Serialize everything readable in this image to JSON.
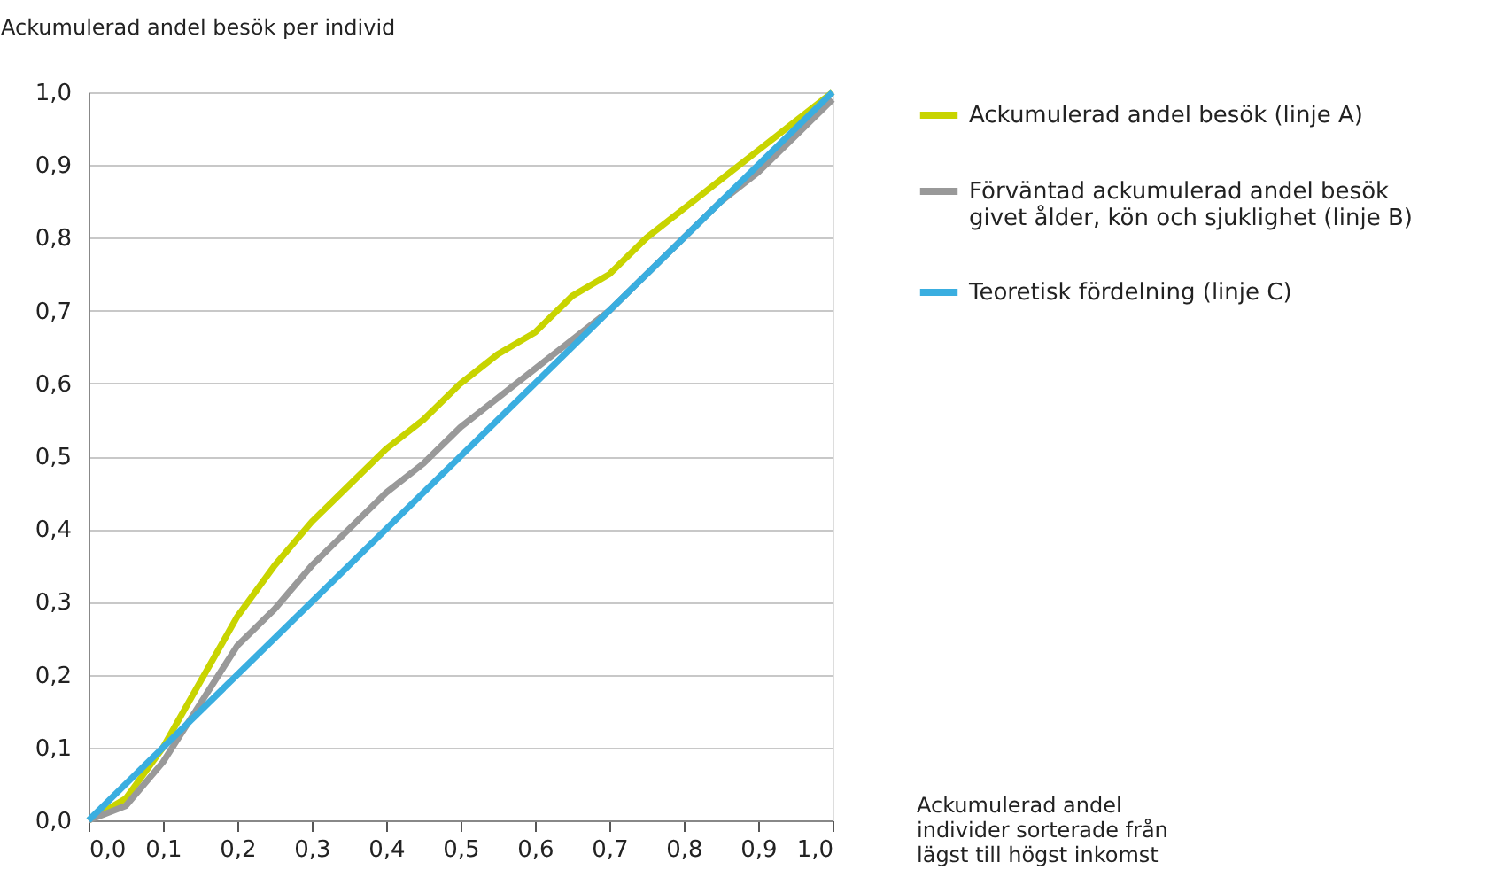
{
  "chart_data": {
    "type": "line",
    "ylabel": "Ackumulerad andel besök per individ",
    "xlabel": "Ackumulerad andel\nindivider sorterade från\nlägst till högst inkomst",
    "xlim": [
      0,
      1
    ],
    "ylim": [
      0,
      1
    ],
    "xticks": [
      {
        "value": 0,
        "label": "0,0"
      },
      {
        "value": 0.1,
        "label": "0,1"
      },
      {
        "value": 0.2,
        "label": "0,2"
      },
      {
        "value": 0.3,
        "label": "0,3"
      },
      {
        "value": 0.4,
        "label": "0,4"
      },
      {
        "value": 0.5,
        "label": "0,5"
      },
      {
        "value": 0.6,
        "label": "0,6"
      },
      {
        "value": 0.7,
        "label": "0,7"
      },
      {
        "value": 0.8,
        "label": "0,8"
      },
      {
        "value": 0.9,
        "label": "0,9"
      },
      {
        "value": 1,
        "label": "1,0"
      }
    ],
    "yticks": [
      {
        "value": 0,
        "label": "0,0"
      },
      {
        "value": 0.1,
        "label": "0,1"
      },
      {
        "value": 0.2,
        "label": "0,2"
      },
      {
        "value": 0.3,
        "label": "0,3"
      },
      {
        "value": 0.4,
        "label": "0,4"
      },
      {
        "value": 0.5,
        "label": "0,5"
      },
      {
        "value": 0.6,
        "label": "0,6"
      },
      {
        "value": 0.7,
        "label": "0,7"
      },
      {
        "value": 0.8,
        "label": "0,8"
      },
      {
        "value": 0.9,
        "label": "0,9"
      },
      {
        "value": 1,
        "label": "1,0"
      }
    ],
    "grid": "y",
    "legend": "right",
    "marker": "none",
    "line_style": "solid",
    "series": [
      {
        "name": "Ackumulerad andel besök (linje A)",
        "color": "#c8d400",
        "x": [
          0,
          0.05,
          0.1,
          0.15,
          0.2,
          0.25,
          0.3,
          0.35,
          0.4,
          0.45,
          0.5,
          0.55,
          0.6,
          0.65,
          0.7,
          0.75,
          0.8,
          0.85,
          0.9,
          0.95,
          1
        ],
        "values": [
          0,
          0.03,
          0.1,
          0.19,
          0.28,
          0.35,
          0.41,
          0.46,
          0.51,
          0.55,
          0.6,
          0.64,
          0.67,
          0.72,
          0.75,
          0.8,
          0.84,
          0.88,
          0.92,
          0.96,
          1
        ]
      },
      {
        "name": "Förväntad ackumulerad andel besök\ngivet ålder, kön och sjuklighet (linje B)",
        "color": "#999999",
        "x": [
          0,
          0.05,
          0.1,
          0.15,
          0.2,
          0.25,
          0.3,
          0.35,
          0.4,
          0.45,
          0.5,
          0.55,
          0.6,
          0.65,
          0.7,
          0.75,
          0.8,
          0.85,
          0.9,
          0.95,
          1
        ],
        "values": [
          0,
          0.02,
          0.08,
          0.16,
          0.24,
          0.29,
          0.35,
          0.4,
          0.45,
          0.49,
          0.54,
          0.58,
          0.62,
          0.66,
          0.7,
          0.75,
          0.8,
          0.85,
          0.89,
          0.94,
          0.99
        ]
      },
      {
        "name": "Teoretisk fördelning (linje C)",
        "color": "#3aaee0",
        "x": [
          0,
          1
        ],
        "values": [
          0,
          1
        ]
      }
    ]
  }
}
